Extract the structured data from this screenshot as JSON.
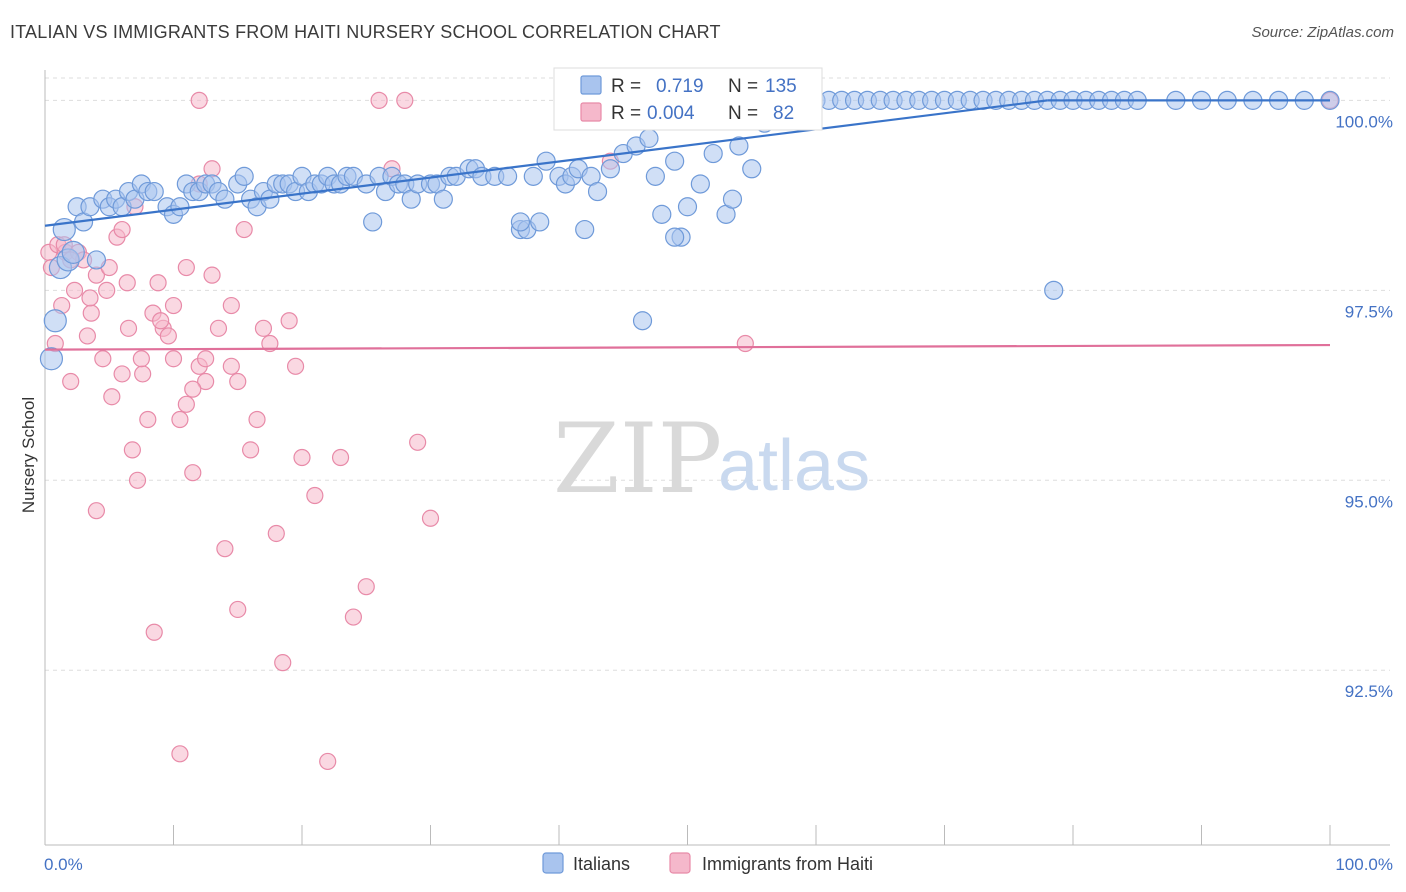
{
  "title": "ITALIAN VS IMMIGRANTS FROM HAITI NURSERY SCHOOL CORRELATION CHART",
  "source": "Source: ZipAtlas.com",
  "watermark": {
    "zip": "ZIP",
    "atlas": "atlas"
  },
  "colors": {
    "italians_fill": "#a9c4ee",
    "italians_stroke": "#6f9ad9",
    "italians_line": "#3a74c9",
    "haiti_fill": "#f5b8cb",
    "haiti_stroke": "#e88aa8",
    "haiti_line": "#e0709a",
    "grid": "#dddddd",
    "tick_text": "#4472c4"
  },
  "legend": {
    "rows": [
      {
        "r_label": "R =",
        "r_value": "0.719",
        "n_label": "N =",
        "n_value": "135"
      },
      {
        "r_label": "R =",
        "r_value": "0.004",
        "n_label": "N =",
        "n_value": "82"
      }
    ]
  },
  "chart_data": {
    "type": "scatter",
    "title": "ITALIAN VS IMMIGRANTS FROM HAITI NURSERY SCHOOL CORRELATION CHART",
    "xlabel": "",
    "ylabel": "Nursery School",
    "xlim": [
      0,
      100
    ],
    "ylim": [
      90.2,
      100.4
    ],
    "x_tick_labels": [
      "0.0%",
      "100.0%"
    ],
    "y_ticks": [
      92.5,
      95.0,
      97.5,
      100.0
    ],
    "y_tick_labels": [
      "92.5%",
      "95.0%",
      "97.5%",
      "100.0%"
    ],
    "grid": true,
    "legend_position": "top-center",
    "series": [
      {
        "name": "Italians",
        "r": 0.719,
        "n": 135,
        "trend": {
          "x0": 0,
          "y0": 98.35,
          "x1": 78,
          "y1": 100.0
        },
        "points": [
          [
            0.5,
            96.6
          ],
          [
            0.8,
            97.1
          ],
          [
            1.2,
            97.8
          ],
          [
            1.5,
            98.3
          ],
          [
            1.8,
            97.9
          ],
          [
            2.2,
            98.0
          ],
          [
            2.5,
            98.6
          ],
          [
            3.0,
            98.4
          ],
          [
            3.5,
            98.6
          ],
          [
            4.0,
            97.9
          ],
          [
            4.5,
            98.7
          ],
          [
            5.0,
            98.6
          ],
          [
            5.5,
            98.7
          ],
          [
            6.0,
            98.6
          ],
          [
            6.5,
            98.8
          ],
          [
            7.0,
            98.7
          ],
          [
            7.5,
            98.9
          ],
          [
            8.0,
            98.8
          ],
          [
            8.5,
            98.8
          ],
          [
            9.5,
            98.6
          ],
          [
            10.0,
            98.5
          ],
          [
            10.5,
            98.6
          ],
          [
            11.0,
            98.9
          ],
          [
            11.5,
            98.8
          ],
          [
            12.0,
            98.8
          ],
          [
            12.5,
            98.9
          ],
          [
            13.0,
            98.9
          ],
          [
            13.5,
            98.8
          ],
          [
            14.0,
            98.7
          ],
          [
            15.0,
            98.9
          ],
          [
            15.5,
            99.0
          ],
          [
            16.0,
            98.7
          ],
          [
            16.5,
            98.6
          ],
          [
            17.0,
            98.8
          ],
          [
            17.5,
            98.7
          ],
          [
            18.0,
            98.9
          ],
          [
            18.5,
            98.9
          ],
          [
            19.0,
            98.9
          ],
          [
            19.5,
            98.8
          ],
          [
            20.0,
            99.0
          ],
          [
            20.5,
            98.8
          ],
          [
            21.0,
            98.9
          ],
          [
            21.5,
            98.9
          ],
          [
            22.0,
            99.0
          ],
          [
            22.5,
            98.9
          ],
          [
            23.0,
            98.9
          ],
          [
            23.5,
            99.0
          ],
          [
            24.0,
            99.0
          ],
          [
            25.0,
            98.9
          ],
          [
            25.5,
            98.4
          ],
          [
            26.0,
            99.0
          ],
          [
            26.5,
            98.8
          ],
          [
            27.0,
            99.0
          ],
          [
            27.5,
            98.9
          ],
          [
            28.0,
            98.9
          ],
          [
            28.5,
            98.7
          ],
          [
            29.0,
            98.9
          ],
          [
            30.0,
            98.9
          ],
          [
            30.5,
            98.9
          ],
          [
            31.0,
            98.7
          ],
          [
            31.5,
            99.0
          ],
          [
            32.0,
            99.0
          ],
          [
            33.0,
            99.1
          ],
          [
            33.5,
            99.1
          ],
          [
            34.0,
            99.0
          ],
          [
            35.0,
            99.0
          ],
          [
            36.0,
            99.0
          ],
          [
            37.0,
            98.3
          ],
          [
            37.5,
            98.3
          ],
          [
            38.0,
            99.0
          ],
          [
            38.5,
            98.4
          ],
          [
            39.0,
            99.2
          ],
          [
            40.0,
            99.0
          ],
          [
            40.5,
            98.9
          ],
          [
            41.0,
            99.0
          ],
          [
            41.5,
            99.1
          ],
          [
            42.0,
            98.3
          ],
          [
            42.5,
            99.0
          ],
          [
            43.0,
            98.8
          ],
          [
            44.0,
            99.1
          ],
          [
            45.0,
            99.3
          ],
          [
            46.0,
            99.4
          ],
          [
            47.0,
            99.5
          ],
          [
            47.5,
            99.0
          ],
          [
            48.0,
            98.5
          ],
          [
            49.0,
            99.2
          ],
          [
            49.5,
            98.2
          ],
          [
            50.0,
            98.6
          ],
          [
            51.0,
            98.9
          ],
          [
            52.0,
            99.3
          ],
          [
            53.0,
            98.5
          ],
          [
            54.0,
            99.4
          ],
          [
            55.0,
            99.1
          ],
          [
            56.0,
            99.7
          ],
          [
            57.0,
            100.0
          ],
          [
            58.0,
            100.0
          ],
          [
            59.0,
            100.0
          ],
          [
            60.0,
            100.0
          ],
          [
            61.0,
            100.0
          ],
          [
            62.0,
            100.0
          ],
          [
            63.0,
            100.0
          ],
          [
            64.0,
            100.0
          ],
          [
            65.0,
            100.0
          ],
          [
            66.0,
            100.0
          ],
          [
            67.0,
            100.0
          ],
          [
            68.0,
            100.0
          ],
          [
            69.0,
            100.0
          ],
          [
            70.0,
            100.0
          ],
          [
            71.0,
            100.0
          ],
          [
            72.0,
            100.0
          ],
          [
            73.0,
            100.0
          ],
          [
            74.0,
            100.0
          ],
          [
            75.0,
            100.0
          ],
          [
            76.0,
            100.0
          ],
          [
            77.0,
            100.0
          ],
          [
            78.0,
            100.0
          ],
          [
            79.0,
            100.0
          ],
          [
            80.0,
            100.0
          ],
          [
            81.0,
            100.0
          ],
          [
            82.0,
            100.0
          ],
          [
            83.0,
            100.0
          ],
          [
            84.0,
            100.0
          ],
          [
            85.0,
            100.0
          ],
          [
            88.0,
            100.0
          ],
          [
            90.0,
            100.0
          ],
          [
            92.0,
            100.0
          ],
          [
            94.0,
            100.0
          ],
          [
            96.0,
            100.0
          ],
          [
            98.0,
            100.0
          ],
          [
            100.0,
            100.0
          ],
          [
            46.5,
            97.1
          ],
          [
            78.5,
            97.5
          ],
          [
            53.5,
            98.7
          ],
          [
            49.0,
            98.2
          ],
          [
            37.0,
            98.4
          ]
        ]
      },
      {
        "name": "Immigrants from Haiti",
        "r": 0.004,
        "n": 82,
        "trend": {
          "x0": 0,
          "y0": 96.72,
          "x1": 100,
          "y1": 96.78
        },
        "points": [
          [
            0.3,
            98.0
          ],
          [
            0.5,
            97.8
          ],
          [
            0.8,
            96.8
          ],
          [
            1.0,
            98.1
          ],
          [
            1.3,
            97.3
          ],
          [
            1.6,
            98.0
          ],
          [
            2.0,
            96.3
          ],
          [
            2.3,
            97.5
          ],
          [
            2.6,
            98.0
          ],
          [
            3.0,
            97.9
          ],
          [
            3.3,
            96.9
          ],
          [
            3.6,
            97.2
          ],
          [
            4.0,
            97.7
          ],
          [
            4.5,
            96.6
          ],
          [
            4.8,
            97.5
          ],
          [
            5.2,
            96.1
          ],
          [
            5.6,
            98.2
          ],
          [
            6.0,
            96.4
          ],
          [
            6.4,
            97.6
          ],
          [
            6.8,
            95.4
          ],
          [
            7.2,
            95.0
          ],
          [
            7.6,
            96.4
          ],
          [
            8.0,
            95.8
          ],
          [
            8.4,
            97.2
          ],
          [
            8.8,
            97.6
          ],
          [
            9.2,
            97.0
          ],
          [
            9.6,
            96.9
          ],
          [
            10.0,
            97.3
          ],
          [
            10.5,
            95.8
          ],
          [
            11.0,
            96.0
          ],
          [
            11.5,
            95.1
          ],
          [
            12.0,
            96.5
          ],
          [
            12.5,
            96.3
          ],
          [
            13.0,
            97.7
          ],
          [
            13.5,
            97.0
          ],
          [
            14.0,
            94.1
          ],
          [
            14.5,
            97.3
          ],
          [
            15.0,
            93.3
          ],
          [
            15.5,
            98.3
          ],
          [
            16.0,
            95.4
          ],
          [
            16.5,
            95.8
          ],
          [
            17.0,
            97.0
          ],
          [
            17.5,
            96.8
          ],
          [
            18.0,
            94.3
          ],
          [
            18.5,
            92.6
          ],
          [
            19.0,
            97.1
          ],
          [
            19.5,
            96.5
          ],
          [
            20.0,
            95.3
          ],
          [
            21.0,
            94.8
          ],
          [
            22.0,
            91.3
          ],
          [
            23.0,
            95.3
          ],
          [
            24.0,
            93.2
          ],
          [
            25.0,
            93.6
          ],
          [
            26.0,
            100.0
          ],
          [
            27.0,
            99.1
          ],
          [
            28.0,
            100.0
          ],
          [
            29.0,
            95.5
          ],
          [
            30.0,
            94.5
          ],
          [
            4.0,
            94.6
          ],
          [
            8.5,
            93.0
          ],
          [
            10.5,
            91.4
          ],
          [
            5.0,
            97.8
          ],
          [
            6.0,
            98.3
          ],
          [
            7.0,
            98.6
          ],
          [
            12.0,
            98.9
          ],
          [
            13.0,
            99.1
          ],
          [
            14.5,
            96.5
          ],
          [
            9.0,
            97.1
          ],
          [
            11.0,
            97.8
          ],
          [
            2.0,
            97.9
          ],
          [
            3.5,
            97.4
          ],
          [
            1.5,
            98.1
          ],
          [
            6.5,
            97.0
          ],
          [
            7.5,
            96.6
          ],
          [
            10.0,
            96.6
          ],
          [
            11.5,
            96.2
          ],
          [
            12.5,
            96.6
          ],
          [
            15.0,
            96.3
          ],
          [
            44.0,
            99.2
          ],
          [
            54.5,
            96.8
          ],
          [
            100.0,
            100.0
          ],
          [
            12.0,
            100.0
          ]
        ]
      }
    ]
  },
  "bottom_legend": {
    "items": [
      {
        "label": "Italians"
      },
      {
        "label": "Immigrants from Haiti"
      }
    ]
  }
}
